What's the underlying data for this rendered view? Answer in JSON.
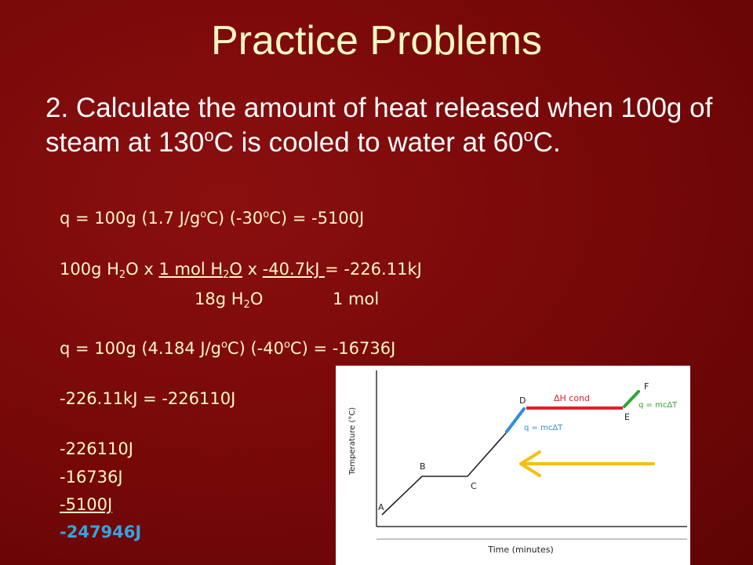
{
  "slide": {
    "title": "Practice Problems",
    "problem": {
      "p1": "2. Calculate the amount of heat released when 100g of steam at 130",
      "o1": "o",
      "p2": "C is cooled to water at 60",
      "o2": "o",
      "p3": "C."
    }
  },
  "calculations": {
    "line1": {
      "a": "q = 100g (1.7 J/g",
      "o1": "o",
      "b": "C) (-30",
      "o2": "o",
      "c": "C) = -5100J"
    },
    "line2": {
      "a": "100g H",
      "sub1": "2",
      "b": "O x ",
      "frac1_num_a": "1 mol H",
      "frac1_sub": "2",
      "frac1_num_b": "O",
      "c": " x ",
      "frac2_num": "-40.7kJ ",
      "d": " = -226.11kJ"
    },
    "line2_den": {
      "a": "18g H",
      "sub": "2",
      "b": "O",
      "c": "1 mol"
    },
    "line3": {
      "a": "q = 100g (4.184 J/g",
      "o1": "o",
      "b": "C) (-40",
      "o2": "o",
      "c": "C) = -16736J"
    },
    "line4": "-226.11kJ = -226110J",
    "sum": [
      "-226110J",
      "-16736J",
      "-5100J"
    ],
    "total": "-247946J"
  },
  "graph": {
    "y_label": "Temperature (°C)",
    "x_label": "Time (minutes)",
    "point_labels": [
      "A",
      "B",
      "C",
      "D",
      "E",
      "F"
    ],
    "annotation_dh": "ΔH cond",
    "annotation_q_right": "q = mcΔT",
    "annotation_q_left": "q = mcΔT",
    "colors": {
      "red_segment": "#e0202a",
      "green_segment": "#2fa33a",
      "blue_segment": "#2e8fd6",
      "arrow": "#f5bf14"
    }
  }
}
